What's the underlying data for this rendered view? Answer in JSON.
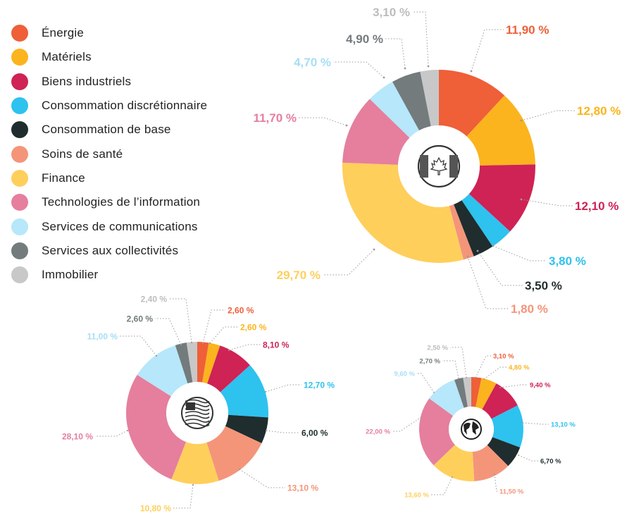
{
  "legend": [
    {
      "label": "Énergie",
      "color": "#ef5f38"
    },
    {
      "label": "Matériels",
      "color": "#fbb41d"
    },
    {
      "label": "Biens industriels",
      "color": "#cf2255"
    },
    {
      "label": "Consommation discrétionnaire",
      "color": "#2ec2ef"
    },
    {
      "label": "Consommation de base",
      "color": "#1f2d2e"
    },
    {
      "label": "Soins de santé",
      "color": "#f4957a"
    },
    {
      "label": "Finance",
      "color": "#ffcf5c"
    },
    {
      "label": "Technologies de l’information",
      "color": "#e57f9d"
    },
    {
      "label": "Services de communications",
      "color": "#b6e7fa"
    },
    {
      "label": "Services aux collectivités",
      "color": "#737b7d"
    },
    {
      "label": "Immobilier",
      "color": "#c8c8c8"
    }
  ],
  "chart_data": [
    {
      "type": "pie",
      "donut": true,
      "center_icon": "canada-flag-icon",
      "categories": [
        "Énergie",
        "Matériels",
        "Biens industriels",
        "Consommation discrétionnaire",
        "Consommation de base",
        "Soins de santé",
        "Finance",
        "Technologies de l’information",
        "Services de communications",
        "Services aux collectivités",
        "Immobilier"
      ],
      "values": [
        11.9,
        12.8,
        12.1,
        3.8,
        3.5,
        1.8,
        29.7,
        11.7,
        4.7,
        4.9,
        3.1
      ],
      "labels": [
        "11,90 %",
        "12,80 %",
        "12,10 %",
        "3,80 %",
        "3,50 %",
        "1,80 %",
        "29,70 %",
        "11,70 %",
        "4,70 %",
        "4,90 %",
        "3,10 %"
      ]
    },
    {
      "type": "pie",
      "donut": true,
      "center_icon": "usa-flag-icon",
      "categories": [
        "Énergie",
        "Matériels",
        "Biens industriels",
        "Consommation discrétionnaire",
        "Consommation de base",
        "Soins de santé",
        "Finance",
        "Technologies de l’information",
        "Services de communications",
        "Services aux collectivités",
        "Immobilier"
      ],
      "values": [
        2.6,
        2.6,
        8.1,
        12.7,
        6.0,
        13.1,
        10.8,
        28.1,
        11.0,
        2.6,
        2.4
      ],
      "labels": [
        "2,60 %",
        "2,60 %",
        "8,10 %",
        "12,70 %",
        "6,00 %",
        "13,10 %",
        "10,80 %",
        "28,10 %",
        "11,00 %",
        "2,60 %",
        "2,40 %"
      ]
    },
    {
      "type": "pie",
      "donut": true,
      "center_icon": "globe-icon",
      "categories": [
        "Énergie",
        "Matériels",
        "Biens industriels",
        "Consommation discrétionnaire",
        "Consommation de base",
        "Soins de santé",
        "Finance",
        "Technologies de l’information",
        "Services de communications",
        "Services aux collectivités",
        "Immobilier"
      ],
      "values": [
        3.1,
        4.8,
        9.4,
        13.1,
        6.7,
        11.5,
        13.6,
        22.0,
        9.6,
        2.7,
        2.5
      ],
      "labels": [
        "3,10 %",
        "4,80 %",
        "9,40 %",
        "13,10 %",
        "6,70 %",
        "11,50 %",
        "13,60 %",
        "22,00 %",
        "9,60 %",
        "2,70 %",
        "2,50 %"
      ]
    }
  ]
}
